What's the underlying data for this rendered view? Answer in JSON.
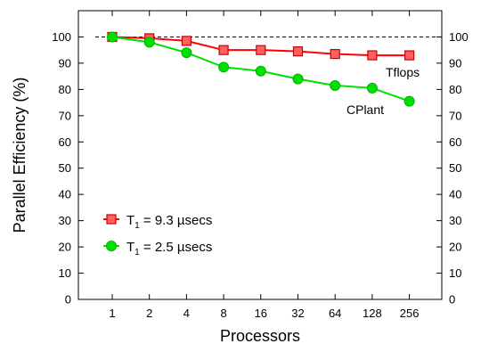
{
  "chart_data": {
    "type": "line",
    "categories": [
      "1",
      "2",
      "4",
      "8",
      "16",
      "32",
      "64",
      "128",
      "256"
    ],
    "xlabel": "Processors",
    "ylabel": "Parallel Efficiency (%)",
    "ylim": [
      0,
      110
    ],
    "yticks": [
      0,
      10,
      20,
      30,
      40,
      50,
      60,
      70,
      80,
      90,
      100
    ],
    "grid": false,
    "legend_position": "lower-left",
    "reference_line": {
      "y": 100,
      "style": "dashed"
    },
    "series": [
      {
        "name": "Tflops",
        "legend_prefix": "T",
        "legend_subscript": "1",
        "legend_suffix": " = 9.3 µsecs",
        "marker": "square",
        "color": "#ff0000",
        "values": [
          100,
          99.5,
          98.5,
          95,
          95,
          94.5,
          93.5,
          93,
          93
        ]
      },
      {
        "name": "CPlant",
        "legend_prefix": "T",
        "legend_subscript": "1",
        "legend_suffix": " = 2.5 µsecs",
        "marker": "circle",
        "color": "#00e000",
        "values": [
          100,
          98,
          94,
          88.5,
          87,
          84,
          81.5,
          80.5,
          75.5
        ]
      }
    ],
    "annotations": [
      "Tflops",
      "CPlant"
    ]
  }
}
